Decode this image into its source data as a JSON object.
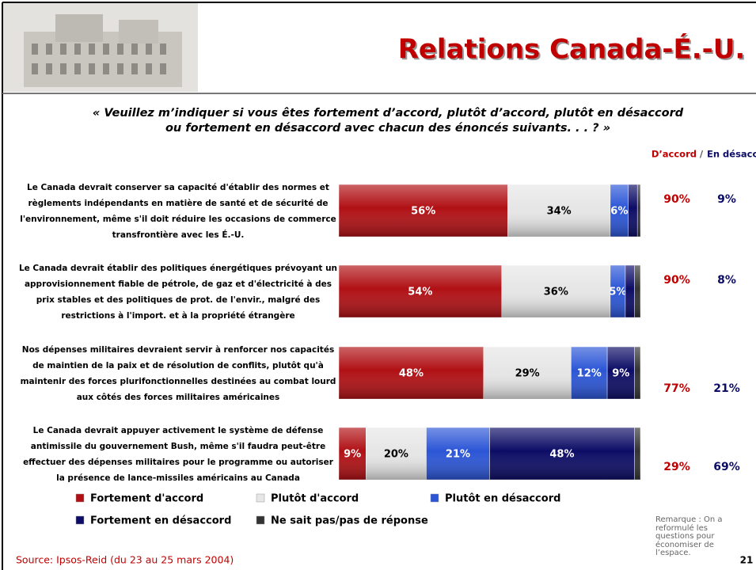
{
  "chart_data": {
    "type": "bar",
    "orientation": "horizontal",
    "stacked": true,
    "title": "Relations Canada-É.-U.",
    "subtitle": "« Veuillez m’indiquer si vous êtes fortement d’accord, plutôt d’accord, plutôt en désaccord ou fortement en désaccord avec chacun des énoncés suivants. . . ? »",
    "categories": [
      "Le Canada devrait conserver sa capacité d'établir des normes et règlements indépendants en matière de santé et de sécurité de l'environnement, même s'il doit réduire les occasions de commerce transfrontière avec les É.-U.",
      "Le Canada devrait établir des politiques énergétiques prévoyant un approvisionnement fiable de pétrole, de gaz et d'électricité à des prix stables et des politiques de prot. de l'envir., malgré des restrictions à l'import. et à la propriété étrangère",
      "Nos dépenses militaires devraient servir à renforcer nos capacités de maintien de la paix et de résolution de conflits, plutôt qu'à maintenir des forces plurifonctionnelles destinées au combat lourd aux côtés des forces militaires américaines",
      "Le Canada devrait appuyer activement le système de défense antimissile du gouvernement Bush, même s'il faudra peut-être effectuer des dépenses militaires pour le programme ou autoriser la présence de lance-missiles américains au Canada"
    ],
    "series": [
      {
        "name": "Fortement d'accord",
        "color": "#b01014",
        "values": [
          56,
          54,
          48,
          9
        ],
        "value_labels": [
          "56%",
          "54%",
          "48%",
          "9%"
        ]
      },
      {
        "name": "Plutôt d'accord",
        "color": "#e6e6e6",
        "values": [
          34,
          36,
          29,
          20
        ],
        "value_labels": [
          "34%",
          "36%",
          "29%",
          "20%"
        ]
      },
      {
        "name": "Plutôt en désaccord",
        "color": "#2b55d6",
        "values": [
          6,
          5,
          12,
          21
        ],
        "value_labels": [
          "6%",
          "5%",
          "12%",
          "21%"
        ]
      },
      {
        "name": "Fortement en désaccord",
        "color": "#0c0c66",
        "values": [
          3,
          3,
          9,
          48
        ],
        "value_labels": [
          null,
          null,
          "9%",
          "48%"
        ]
      },
      {
        "name": "Ne sait pas/pas de réponse",
        "color": "#333333",
        "values": [
          1,
          2,
          2,
          2
        ],
        "value_labels": [
          null,
          null,
          null,
          null
        ]
      }
    ],
    "xlim": [
      0,
      100
    ],
    "totals": {
      "agree": {
        "name": "D’accord",
        "color": "#c00000",
        "values": [
          90,
          90,
          77,
          29
        ],
        "value_labels": [
          "90%",
          "90%",
          "77%",
          "29%"
        ]
      },
      "disagree": {
        "name": "En désaccord",
        "color": "#0c0c66",
        "values": [
          9,
          8,
          21,
          69
        ],
        "value_labels": [
          "9%",
          "8%",
          "21%",
          "69%"
        ]
      },
      "separator": "/"
    },
    "source": "Source: Ipsos-Reid (du 23 au 25 mars 2004)",
    "note": "Remarque : On a reformulé les questions pour économiser de l’espace.",
    "page": "21"
  }
}
